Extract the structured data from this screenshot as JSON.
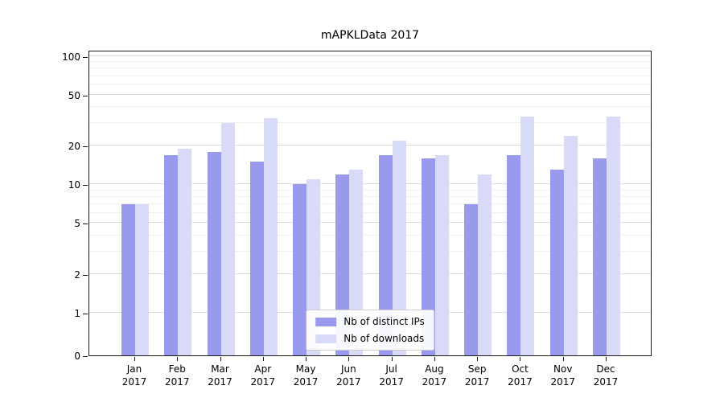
{
  "figure": {
    "background": "#ffffff"
  },
  "chart_data": {
    "type": "bar",
    "title": "mAPKLData 2017",
    "categories": [
      "Jan",
      "Feb",
      "Mar",
      "Apr",
      "May",
      "Jun",
      "Jul",
      "Aug",
      "Sep",
      "Oct",
      "Nov",
      "Dec"
    ],
    "category_sublabel": "2017",
    "series": [
      {
        "name": "Nb of distinct IPs",
        "color": "#9999ee",
        "values": [
          7,
          17,
          18,
          15,
          10,
          12,
          17,
          16,
          7,
          17,
          13,
          16
        ]
      },
      {
        "name": "Nb of downloads",
        "color": "#d9d9f8",
        "values": [
          7,
          19,
          30,
          33,
          11,
          13,
          22,
          17,
          12,
          34,
          24,
          34
        ]
      }
    ],
    "xlabel": "",
    "ylabel": "",
    "yscale": "symlog",
    "linthresh": 1,
    "yticks": [
      0,
      1,
      2,
      5,
      10,
      20,
      50,
      100
    ],
    "yminorticks": [
      3,
      4,
      6,
      7,
      8,
      9,
      30,
      40,
      60,
      70,
      80,
      90
    ],
    "ylim": [
      0,
      112
    ],
    "grid": true,
    "legend": {
      "position": "lower center",
      "entries": [
        "Nb of distinct IPs",
        "Nb of downloads"
      ]
    }
  }
}
